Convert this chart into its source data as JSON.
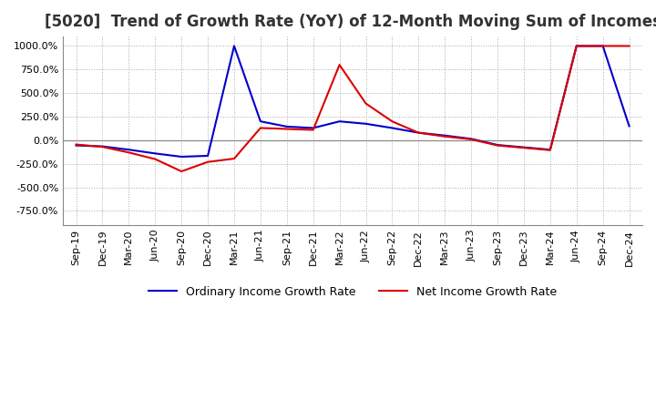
{
  "title": "[5020]  Trend of Growth Rate (YoY) of 12-Month Moving Sum of Incomes",
  "title_fontsize": 12,
  "ylim": [
    -900,
    1100
  ],
  "yticks": [
    -750,
    -500,
    -250,
    0,
    250,
    500,
    750,
    1000
  ],
  "background_color": "#ffffff",
  "grid_color": "#aaaaaa",
  "ordinary_color": "#0000cc",
  "net_color": "#dd0000",
  "legend_labels": [
    "Ordinary Income Growth Rate",
    "Net Income Growth Rate"
  ],
  "x_labels": [
    "Sep-19",
    "Dec-19",
    "Mar-20",
    "Jun-20",
    "Sep-20",
    "Dec-20",
    "Mar-21",
    "Jun-21",
    "Sep-21",
    "Dec-21",
    "Mar-22",
    "Jun-22",
    "Sep-22",
    "Dec-22",
    "Mar-23",
    "Jun-23",
    "Sep-23",
    "Dec-23",
    "Mar-24",
    "Jun-24",
    "Sep-24",
    "Dec-24"
  ],
  "ordinary_income_growth": [
    -55,
    -65,
    -100,
    -140,
    -175,
    -165,
    1000,
    200,
    145,
    130,
    200,
    175,
    130,
    80,
    50,
    15,
    -50,
    -75,
    -100,
    1000,
    1000,
    150
  ],
  "net_income_growth": [
    -45,
    -70,
    -130,
    -200,
    -330,
    -230,
    -195,
    130,
    120,
    110,
    800,
    390,
    200,
    80,
    40,
    10,
    -55,
    -80,
    -105,
    1000,
    1000,
    1000
  ]
}
